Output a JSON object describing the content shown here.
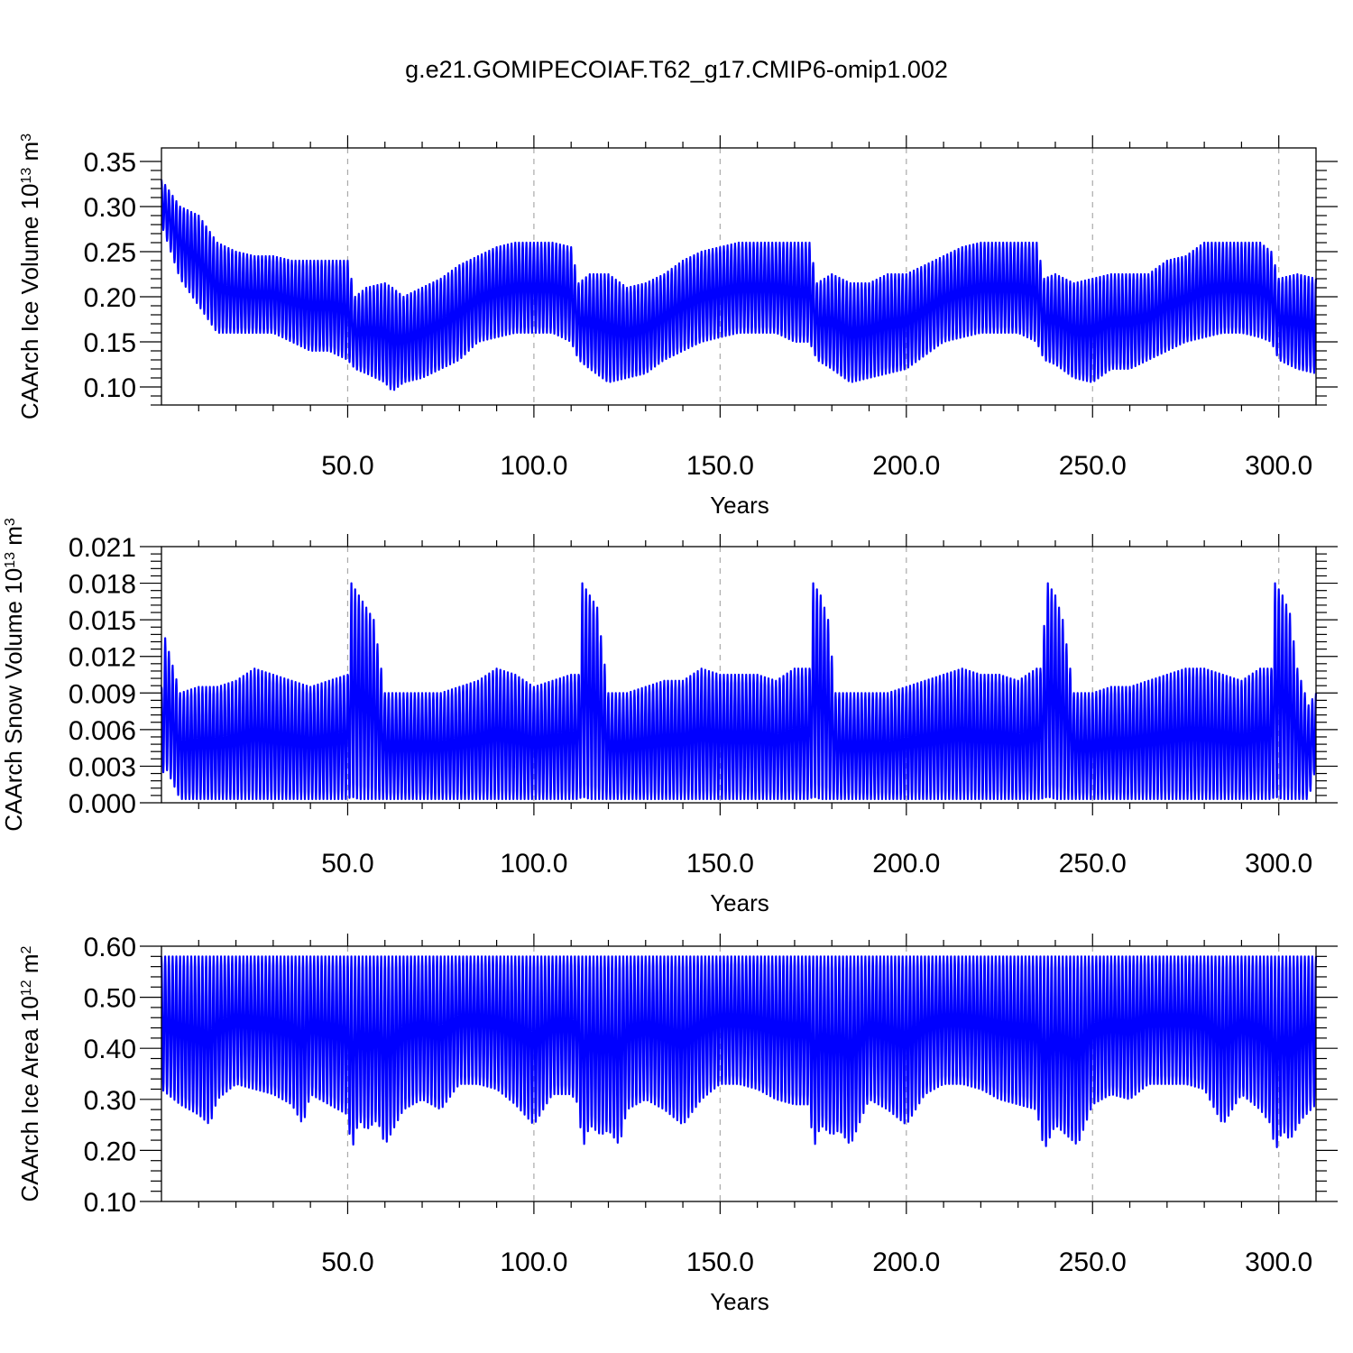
{
  "title": "g.e21.GOMIPECOIAF.T62_g17.CMIP6-omip1.002",
  "colors": {
    "line": "#0000ff",
    "axis": "#000000",
    "grid": "#aaaaaa"
  },
  "chart_data": [
    {
      "type": "line",
      "xlabel": "Years",
      "ylabel": "CAArch Ice Volume 10",
      "ylabel_exp": "13",
      "ylabel_unit": "m",
      "ylabel_unit_exp": "3",
      "xlim": [
        0,
        310
      ],
      "ylim": [
        0.08,
        0.365
      ],
      "xticks": [
        50,
        100,
        150,
        200,
        250,
        300
      ],
      "xtick_labels": [
        "50.0",
        "100.0",
        "150.0",
        "200.0",
        "250.0",
        "300.0"
      ],
      "yticks": [
        0.1,
        0.15,
        0.2,
        0.25,
        0.3,
        0.35
      ],
      "ytick_labels": [
        "0.10",
        "0.15",
        "0.20",
        "0.25",
        "0.30",
        "0.35"
      ],
      "grid_x": true,
      "series": [
        {
          "x": [
            0,
            5,
            10,
            15,
            20,
            25,
            30,
            35,
            40,
            45,
            50,
            52,
            55,
            60,
            62,
            65,
            70,
            75,
            80,
            85,
            90,
            95,
            100,
            105,
            110,
            112,
            115,
            120,
            125,
            130,
            135,
            140,
            145,
            150,
            155,
            160,
            165,
            170,
            174,
            176,
            180,
            185,
            190,
            195,
            200,
            205,
            210,
            215,
            220,
            225,
            230,
            235,
            237,
            240,
            245,
            250,
            255,
            260,
            265,
            270,
            275,
            280,
            285,
            290,
            295,
            298,
            300,
            305,
            310
          ],
          "max": [
            0.33,
            0.3,
            0.29,
            0.26,
            0.25,
            0.245,
            0.245,
            0.24,
            0.24,
            0.24,
            0.24,
            0.2,
            0.21,
            0.215,
            0.21,
            0.2,
            0.21,
            0.22,
            0.235,
            0.245,
            0.255,
            0.26,
            0.26,
            0.26,
            0.255,
            0.215,
            0.225,
            0.225,
            0.21,
            0.215,
            0.225,
            0.24,
            0.25,
            0.255,
            0.26,
            0.26,
            0.26,
            0.26,
            0.26,
            0.215,
            0.225,
            0.215,
            0.215,
            0.225,
            0.225,
            0.235,
            0.245,
            0.255,
            0.26,
            0.26,
            0.26,
            0.26,
            0.22,
            0.225,
            0.215,
            0.22,
            0.225,
            0.225,
            0.225,
            0.24,
            0.245,
            0.26,
            0.26,
            0.26,
            0.26,
            0.25,
            0.22,
            0.225,
            0.22
          ],
          "min": [
            0.28,
            0.22,
            0.19,
            0.16,
            0.16,
            0.16,
            0.16,
            0.15,
            0.14,
            0.14,
            0.13,
            0.12,
            0.115,
            0.105,
            0.095,
            0.105,
            0.11,
            0.12,
            0.13,
            0.15,
            0.155,
            0.16,
            0.16,
            0.16,
            0.15,
            0.13,
            0.12,
            0.105,
            0.11,
            0.115,
            0.13,
            0.14,
            0.15,
            0.155,
            0.16,
            0.16,
            0.16,
            0.15,
            0.15,
            0.13,
            0.12,
            0.105,
            0.11,
            0.115,
            0.12,
            0.135,
            0.15,
            0.155,
            0.16,
            0.16,
            0.16,
            0.15,
            0.13,
            0.125,
            0.11,
            0.105,
            0.12,
            0.12,
            0.13,
            0.14,
            0.15,
            0.155,
            0.16,
            0.16,
            0.155,
            0.15,
            0.13,
            0.12,
            0.115
          ]
        }
      ]
    },
    {
      "type": "line",
      "xlabel": "Years",
      "ylabel": "CAArch Snow Volume 10",
      "ylabel_exp": "13",
      "ylabel_unit": "m",
      "ylabel_unit_exp": "3",
      "xlim": [
        0,
        310
      ],
      "ylim": [
        0,
        0.021
      ],
      "xticks": [
        50,
        100,
        150,
        200,
        250,
        300
      ],
      "xtick_labels": [
        "50.0",
        "100.0",
        "150.0",
        "200.0",
        "250.0",
        "300.0"
      ],
      "yticks": [
        0.0,
        0.003,
        0.006,
        0.009,
        0.012,
        0.015,
        0.018,
        0.021
      ],
      "ytick_labels": [
        "0.000",
        "0.003",
        "0.006",
        "0.009",
        "0.012",
        "0.015",
        "0.018",
        "0.021"
      ],
      "grid_x": true,
      "series": [
        {
          "x": [
            0,
            1,
            5,
            10,
            15,
            20,
            25,
            30,
            35,
            40,
            45,
            50,
            51,
            53,
            55,
            57,
            60,
            65,
            70,
            75,
            80,
            85,
            90,
            95,
            100,
            105,
            110,
            112,
            113,
            115,
            117,
            120,
            125,
            130,
            135,
            140,
            145,
            150,
            155,
            160,
            165,
            170,
            174,
            175,
            177,
            179,
            181,
            185,
            190,
            195,
            200,
            205,
            210,
            215,
            220,
            225,
            230,
            235,
            236,
            238,
            240,
            242,
            245,
            250,
            255,
            260,
            265,
            270,
            275,
            280,
            285,
            290,
            295,
            298,
            299,
            301,
            303,
            305,
            308,
            310
          ],
          "max": [
            0.0095,
            0.0135,
            0.009,
            0.0095,
            0.0095,
            0.01,
            0.011,
            0.0105,
            0.01,
            0.0095,
            0.01,
            0.0105,
            0.018,
            0.017,
            0.016,
            0.015,
            0.009,
            0.009,
            0.009,
            0.009,
            0.0095,
            0.01,
            0.011,
            0.0105,
            0.0095,
            0.01,
            0.0105,
            0.0105,
            0.018,
            0.017,
            0.016,
            0.009,
            0.009,
            0.0095,
            0.01,
            0.01,
            0.011,
            0.0105,
            0.0105,
            0.0105,
            0.01,
            0.011,
            0.011,
            0.018,
            0.017,
            0.015,
            0.009,
            0.009,
            0.009,
            0.009,
            0.0095,
            0.01,
            0.0105,
            0.011,
            0.0105,
            0.0105,
            0.01,
            0.011,
            0.011,
            0.018,
            0.017,
            0.015,
            0.009,
            0.009,
            0.0095,
            0.0095,
            0.01,
            0.0105,
            0.011,
            0.011,
            0.0105,
            0.01,
            0.011,
            0.011,
            0.018,
            0.017,
            0.0155,
            0.011,
            0.008,
            0.009
          ],
          "min": [
            0.002,
            0.003,
            0.0003,
            0.0003,
            0.0003,
            0.0003,
            0.0003,
            0.0003,
            0.0003,
            0.0003,
            0.0003,
            0.0003,
            0.0005,
            0.0003,
            0.0003,
            0.0003,
            0.0003,
            0.0003,
            0.0003,
            0.0003,
            0.0003,
            0.0003,
            0.0003,
            0.0003,
            0.0003,
            0.0003,
            0.0003,
            0.0003,
            0.0005,
            0.0003,
            0.0003,
            0.0003,
            0.0003,
            0.0003,
            0.0003,
            0.0003,
            0.0003,
            0.0003,
            0.0003,
            0.0003,
            0.0003,
            0.0003,
            0.0003,
            0.0005,
            0.0003,
            0.0003,
            0.0003,
            0.0003,
            0.0003,
            0.0003,
            0.0003,
            0.0003,
            0.0003,
            0.0003,
            0.0003,
            0.0003,
            0.0003,
            0.0003,
            0.0003,
            0.0005,
            0.0003,
            0.0003,
            0.0003,
            0.0003,
            0.0003,
            0.0003,
            0.0003,
            0.0003,
            0.0003,
            0.0003,
            0.0003,
            0.0003,
            0.0003,
            0.0003,
            0.0005,
            0.0003,
            0.0003,
            0.0003,
            0.0003,
            0.003
          ]
        }
      ]
    },
    {
      "type": "line",
      "xlabel": "Years",
      "ylabel": "CAArch Ice Area 10",
      "ylabel_exp": "12",
      "ylabel_unit": "m",
      "ylabel_unit_exp": "2",
      "xlim": [
        0,
        310
      ],
      "ylim": [
        0.1,
        0.6
      ],
      "xticks": [
        50,
        100,
        150,
        200,
        250,
        300
      ],
      "xtick_labels": [
        "50.0",
        "100.0",
        "150.0",
        "200.0",
        "250.0",
        "300.0"
      ],
      "yticks": [
        0.1,
        0.2,
        0.3,
        0.4,
        0.5,
        0.6
      ],
      "ytick_labels": [
        "0.10",
        "0.20",
        "0.30",
        "0.40",
        "0.50",
        "0.60"
      ],
      "grid_x": true,
      "series": [
        {
          "x": [
            0,
            5,
            10,
            13,
            15,
            20,
            25,
            30,
            35,
            38,
            40,
            45,
            50,
            51,
            53,
            55,
            58,
            60,
            65,
            70,
            75,
            80,
            85,
            90,
            95,
            100,
            105,
            110,
            112,
            113,
            115,
            118,
            120,
            123,
            125,
            130,
            135,
            140,
            145,
            150,
            155,
            160,
            165,
            170,
            174,
            175,
            177,
            180,
            182,
            185,
            190,
            195,
            200,
            205,
            210,
            215,
            220,
            225,
            230,
            235,
            237,
            240,
            243,
            246,
            250,
            255,
            260,
            265,
            270,
            275,
            280,
            285,
            290,
            295,
            298,
            299,
            301,
            303,
            306,
            310
          ],
          "max": [
            0.58,
            0.58,
            0.58,
            0.58,
            0.58,
            0.58,
            0.58,
            0.58,
            0.58,
            0.58,
            0.58,
            0.58,
            0.58,
            0.58,
            0.58,
            0.58,
            0.58,
            0.58,
            0.58,
            0.58,
            0.58,
            0.58,
            0.58,
            0.58,
            0.58,
            0.58,
            0.58,
            0.58,
            0.58,
            0.58,
            0.58,
            0.58,
            0.58,
            0.58,
            0.58,
            0.58,
            0.58,
            0.58,
            0.58,
            0.58,
            0.58,
            0.58,
            0.58,
            0.58,
            0.58,
            0.58,
            0.58,
            0.58,
            0.58,
            0.58,
            0.58,
            0.58,
            0.58,
            0.58,
            0.58,
            0.58,
            0.58,
            0.58,
            0.58,
            0.58,
            0.58,
            0.58,
            0.58,
            0.58,
            0.58,
            0.58,
            0.58,
            0.58,
            0.58,
            0.58,
            0.58,
            0.58,
            0.58,
            0.58,
            0.58,
            0.58,
            0.58,
            0.58,
            0.58,
            0.58
          ],
          "min": [
            0.32,
            0.29,
            0.27,
            0.25,
            0.3,
            0.33,
            0.32,
            0.31,
            0.29,
            0.25,
            0.31,
            0.29,
            0.27,
            0.195,
            0.26,
            0.24,
            0.26,
            0.21,
            0.28,
            0.3,
            0.28,
            0.33,
            0.33,
            0.32,
            0.29,
            0.25,
            0.31,
            0.31,
            0.29,
            0.2,
            0.25,
            0.23,
            0.24,
            0.21,
            0.28,
            0.3,
            0.28,
            0.25,
            0.3,
            0.33,
            0.33,
            0.32,
            0.3,
            0.29,
            0.29,
            0.2,
            0.25,
            0.23,
            0.24,
            0.21,
            0.3,
            0.28,
            0.25,
            0.31,
            0.33,
            0.33,
            0.32,
            0.3,
            0.29,
            0.28,
            0.2,
            0.25,
            0.23,
            0.21,
            0.29,
            0.31,
            0.3,
            0.33,
            0.33,
            0.33,
            0.32,
            0.25,
            0.31,
            0.28,
            0.25,
            0.195,
            0.24,
            0.22,
            0.26,
            0.29
          ]
        }
      ]
    }
  ]
}
